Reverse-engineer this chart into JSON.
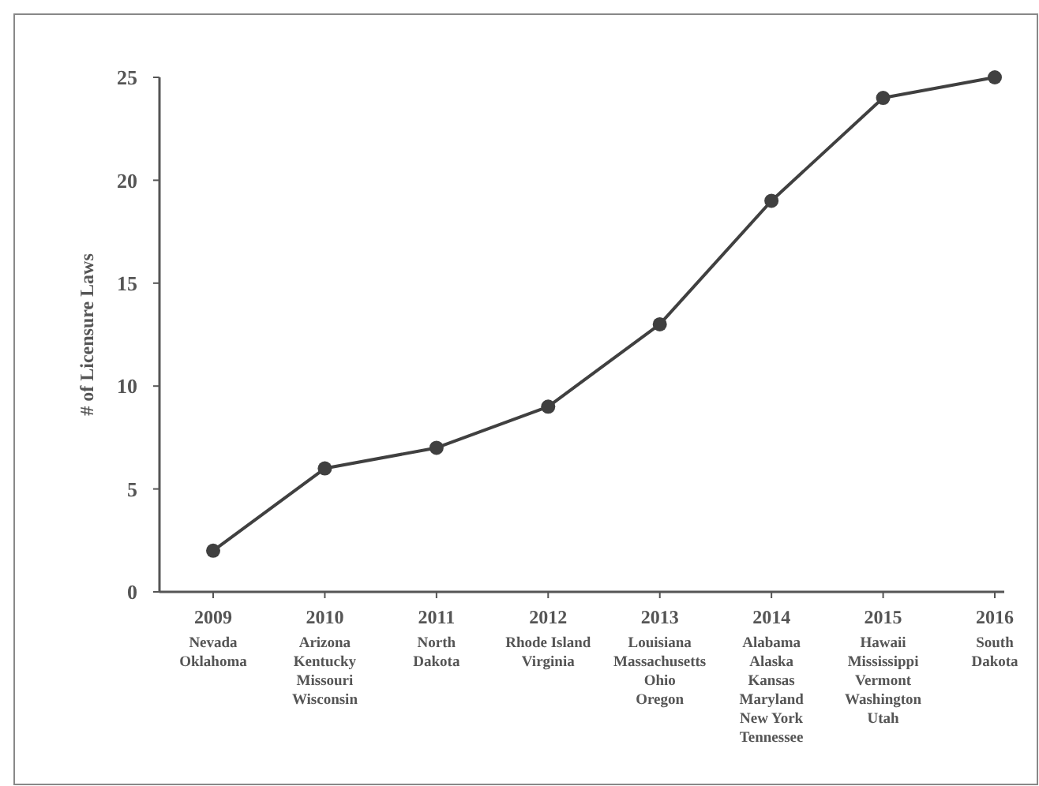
{
  "chart_data": {
    "type": "line",
    "ylabel": "# of Licensure Laws",
    "categories": [
      "2009\nNevada\nOklahoma",
      "2010\nArizona\nKentucky\nMissouri\nWisconsin",
      "2011\nNorth\nDakota",
      "2012\nRhode Island\nVirginia",
      "2013\nLouisiana\nMassachusetts\nOhio\nOregon",
      "2014\nAlabama\nAlaska\nKansas\nMaryland\nNew York\nTennessee",
      "2015\nHawaii\nMississippi\nVermont\nWashington\nUtah",
      "2016\nSouth\nDakota"
    ],
    "series": [
      {
        "color": "#404040",
        "values": [
          2,
          6,
          7,
          9,
          13,
          19,
          24,
          25
        ]
      }
    ],
    "ylim": [
      0,
      25
    ],
    "yticks": [
      0,
      5,
      10,
      15,
      20,
      25
    ],
    "marker": "circle",
    "line_style": "solid",
    "grid": false
  }
}
